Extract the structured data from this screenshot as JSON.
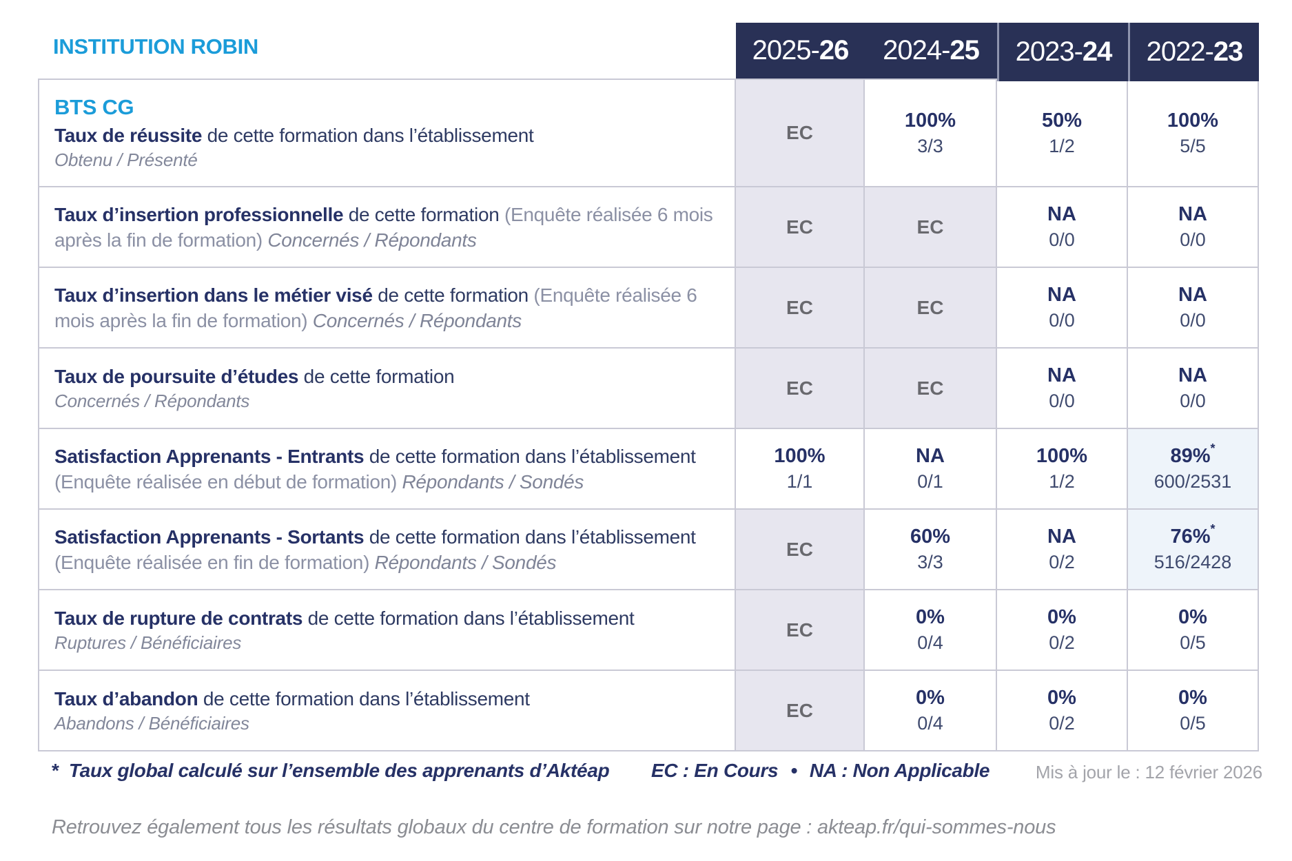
{
  "page": {
    "institution": "INSTITUTION ROBIN"
  },
  "colors": {
    "navy": "#293156",
    "blue": "#1B9CD9",
    "ec_cell_bg": "#E7E6EF",
    "highlight_cell_bg": "#EEF4FA"
  },
  "header": {
    "years": [
      {
        "prefix": "2025-",
        "suffix": "26"
      },
      {
        "prefix": "2024-",
        "suffix": "25"
      },
      {
        "prefix": "2023-",
        "suffix": "24"
      },
      {
        "prefix": "2022-",
        "suffix": "23"
      }
    ]
  },
  "rows": [
    {
      "program": "BTS CG",
      "label_bold": "Taux de réussite",
      "label_normal": " de cette formation dans l’établissement",
      "label_muted": "",
      "label_tail": "",
      "subtitle": "Obtenu / Présenté",
      "cells": [
        {
          "bg": "ec",
          "main": "EC",
          "star": "",
          "sub": ""
        },
        {
          "bg": "plain",
          "main": "100%",
          "star": "",
          "sub": "3/3"
        },
        {
          "bg": "plain",
          "main": "50%",
          "star": "",
          "sub": "1/2"
        },
        {
          "bg": "plain",
          "main": "100%",
          "star": "",
          "sub": "5/5"
        }
      ]
    },
    {
      "program": "",
      "label_bold": "Taux d’insertion professionnelle",
      "label_normal": " de cette formation ",
      "label_muted": "(Enquête réalisée 6 mois après la fin de formation) ",
      "label_tail": "Concernés / Répondants",
      "subtitle": "",
      "cells": [
        {
          "bg": "ec",
          "main": "EC",
          "star": "",
          "sub": ""
        },
        {
          "bg": "ec",
          "main": "EC",
          "star": "",
          "sub": ""
        },
        {
          "bg": "plain",
          "main": "NA",
          "star": "",
          "sub": "0/0"
        },
        {
          "bg": "plain",
          "main": "NA",
          "star": "",
          "sub": "0/0"
        }
      ]
    },
    {
      "program": "",
      "label_bold": "Taux d’insertion dans le métier visé",
      "label_normal": " de cette formation ",
      "label_muted": "(Enquête réalisée 6 mois après la fin de formation) ",
      "label_tail": "Concernés / Répondants",
      "subtitle": "",
      "cells": [
        {
          "bg": "ec",
          "main": "EC",
          "star": "",
          "sub": ""
        },
        {
          "bg": "ec",
          "main": "EC",
          "star": "",
          "sub": ""
        },
        {
          "bg": "plain",
          "main": "NA",
          "star": "",
          "sub": "0/0"
        },
        {
          "bg": "plain",
          "main": "NA",
          "star": "",
          "sub": "0/0"
        }
      ]
    },
    {
      "program": "",
      "label_bold": "Taux de poursuite d’études",
      "label_normal": " de cette formation",
      "label_muted": "",
      "label_tail": "",
      "subtitle": "Concernés / Répondants",
      "cells": [
        {
          "bg": "ec",
          "main": "EC",
          "star": "",
          "sub": ""
        },
        {
          "bg": "ec",
          "main": "EC",
          "star": "",
          "sub": ""
        },
        {
          "bg": "plain",
          "main": "NA",
          "star": "",
          "sub": "0/0"
        },
        {
          "bg": "plain",
          "main": "NA",
          "star": "",
          "sub": "0/0"
        }
      ]
    },
    {
      "program": "",
      "label_bold": "Satisfaction Apprenants - Entrants",
      "label_normal": " de cette formation dans l’établissement ",
      "label_muted": "(Enquête réalisée en début de formation) ",
      "label_tail": "Répondants / Sondés",
      "subtitle": "",
      "cells": [
        {
          "bg": "plain",
          "main": "100%",
          "star": "",
          "sub": "1/1"
        },
        {
          "bg": "plain",
          "main": "NA",
          "star": "",
          "sub": "0/1"
        },
        {
          "bg": "plain",
          "main": "100%",
          "star": "",
          "sub": "1/2"
        },
        {
          "bg": "blue",
          "main": "89%",
          "star": "*",
          "sub": "600/2531"
        }
      ]
    },
    {
      "program": "",
      "label_bold": "Satisfaction Apprenants - Sortants",
      "label_normal": " de cette formation dans l’établissement ",
      "label_muted": "(Enquête réalisée en fin de formation) ",
      "label_tail": "Répondants / Sondés",
      "subtitle": "",
      "cells": [
        {
          "bg": "ec",
          "main": "EC",
          "star": "",
          "sub": ""
        },
        {
          "bg": "plain",
          "main": "60%",
          "star": "",
          "sub": "3/3"
        },
        {
          "bg": "plain",
          "main": "NA",
          "star": "",
          "sub": "0/2"
        },
        {
          "bg": "blue",
          "main": "76%",
          "star": "*",
          "sub": "516/2428"
        }
      ]
    },
    {
      "program": "",
      "label_bold": "Taux de rupture de contrats",
      "label_normal": " de cette formation dans l’établissement",
      "label_muted": "",
      "label_tail": "",
      "subtitle": "Ruptures / Bénéficiaires",
      "cells": [
        {
          "bg": "ec",
          "main": "EC",
          "star": "",
          "sub": ""
        },
        {
          "bg": "plain",
          "main": "0%",
          "star": "",
          "sub": "0/4"
        },
        {
          "bg": "plain",
          "main": "0%",
          "star": "",
          "sub": "0/2"
        },
        {
          "bg": "plain",
          "main": "0%",
          "star": "",
          "sub": "0/5"
        }
      ]
    },
    {
      "program": "",
      "label_bold": "Taux d’abandon",
      "label_normal": " de cette formation dans l’établissement",
      "label_muted": "",
      "label_tail": "",
      "subtitle": "Abandons / Bénéficiaires",
      "cells": [
        {
          "bg": "ec",
          "main": "EC",
          "star": "",
          "sub": ""
        },
        {
          "bg": "plain",
          "main": "0%",
          "star": "",
          "sub": "0/4"
        },
        {
          "bg": "plain",
          "main": "0%",
          "star": "",
          "sub": "0/2"
        },
        {
          "bg": "plain",
          "main": "0%",
          "star": "",
          "sub": "0/5"
        }
      ]
    }
  ],
  "footer": {
    "footnote_marker": "*",
    "footnote_text": "Taux global calculé sur l’ensemble des apprenants d’Aktéap",
    "legend_ec": "EC : En Cours",
    "legend_separator": "•",
    "legend_na": "NA : Non Applicable",
    "updated": "Mis à jour le : 12 février 2026",
    "bottom_note": "Retrouvez également tous les résultats globaux du centre de formation sur notre page : akteap.fr/qui-sommes-nous"
  }
}
